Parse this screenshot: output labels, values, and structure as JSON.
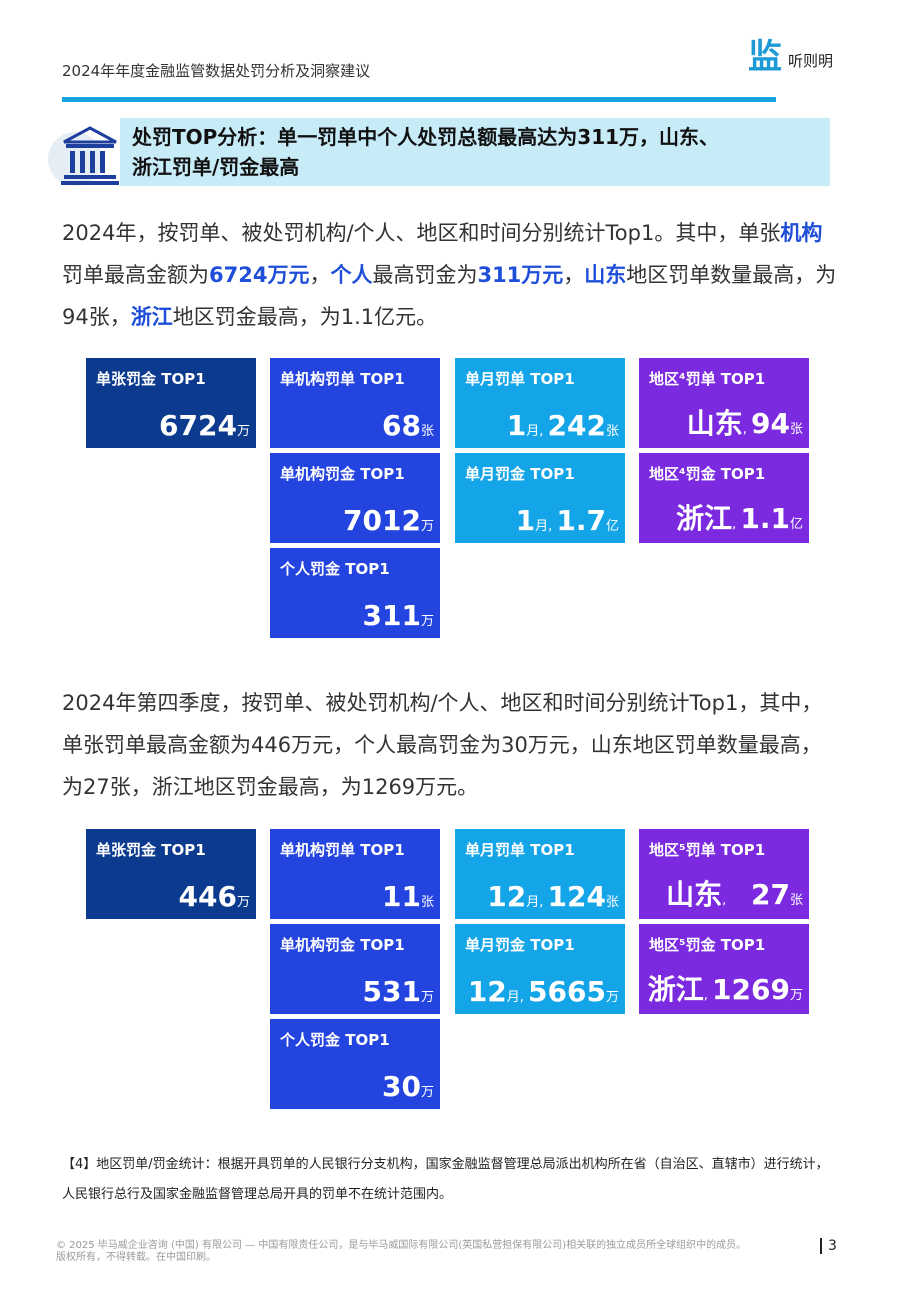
{
  "header": {
    "doc_title": "2024年年度金融监管数据处罚分析及洞察建议",
    "logo_mark": "监",
    "logo_text": "听则明"
  },
  "section": {
    "title_line1": "处罚TOP分析：单一罚单中个人处罚总额最高达为311万，山东、",
    "title_line2": "浙江罚单/罚金最高"
  },
  "para1": {
    "t1": "2024年，按罚单、被处罚机构/个人、地区和时间分别统计Top1。其中，单张",
    "h1": "机构",
    "t2": "罚单最高金额为",
    "h2": "6724万元",
    "t3": "，",
    "h3": "个人",
    "t4": "最高罚金为",
    "h4": "311万元",
    "t5": "，",
    "h5": "山东",
    "t6": "地区罚单数量最高，为94张，",
    "h6": "浙江",
    "t7": "地区罚金最高，为1.1亿元。"
  },
  "grid1": [
    {
      "label": "单张罚金 TOP1",
      "parts": [
        {
          "n": "6724"
        },
        {
          "u": "万"
        }
      ],
      "color": "navy"
    },
    {
      "label": "单机构罚单 TOP1",
      "parts": [
        {
          "n": "68"
        },
        {
          "u": "张"
        }
      ],
      "color": "blue"
    },
    {
      "label": "单月罚单 TOP1",
      "parts": [
        {
          "n": "1"
        },
        {
          "u": "月, "
        },
        {
          "n": "242"
        },
        {
          "u": "张"
        }
      ],
      "color": "cyan"
    },
    {
      "label": "地区⁴罚单 TOP1",
      "parts": [
        {
          "n": "山东"
        },
        {
          "u": ", "
        },
        {
          "n": "94"
        },
        {
          "u": "张"
        }
      ],
      "color": "purple"
    },
    {
      "label": "单机构罚金 TOP1",
      "parts": [
        {
          "n": "7012"
        },
        {
          "u": "万"
        }
      ],
      "color": "blue"
    },
    {
      "label": "单月罚金 TOP1",
      "parts": [
        {
          "n": "1"
        },
        {
          "u": "月, "
        },
        {
          "n": "1.7"
        },
        {
          "u": "亿"
        }
      ],
      "color": "cyan"
    },
    {
      "label": "地区⁴罚金 TOP1",
      "parts": [
        {
          "n": "浙江"
        },
        {
          "u": ", "
        },
        {
          "n": "1.1"
        },
        {
          "u": "亿"
        }
      ],
      "color": "purple"
    },
    {
      "label": "个人罚金 TOP1",
      "parts": [
        {
          "n": "311"
        },
        {
          "u": "万"
        }
      ],
      "color": "blue"
    }
  ],
  "para2": {
    "text": "2024年第四季度，按罚单、被处罚机构/个人、地区和时间分别统计Top1，其中，单张罚单最高金额为446万元，个人最高罚金为30万元，山东地区罚单数量最高，为27张，浙江地区罚金最高，为1269万元。"
  },
  "grid2": [
    {
      "label": "单张罚金 TOP1",
      "parts": [
        {
          "n": "446"
        },
        {
          "u": "万"
        }
      ],
      "color": "navy"
    },
    {
      "label": "单机构罚单 TOP1",
      "parts": [
        {
          "n": "11"
        },
        {
          "u": "张"
        }
      ],
      "color": "blue"
    },
    {
      "label": "单月罚单 TOP1",
      "parts": [
        {
          "n": "12"
        },
        {
          "u": "月, "
        },
        {
          "n": "124"
        },
        {
          "u": "张"
        }
      ],
      "color": "cyan"
    },
    {
      "label": "地区⁵罚单 TOP1",
      "parts": [
        {
          "n": "山东"
        },
        {
          "u": ",      "
        },
        {
          "n": "27"
        },
        {
          "u": "张"
        }
      ],
      "color": "purple"
    },
    {
      "label": "单机构罚金 TOP1",
      "parts": [
        {
          "n": "531"
        },
        {
          "u": "万"
        }
      ],
      "color": "blue"
    },
    {
      "label": "单月罚金 TOP1",
      "parts": [
        {
          "n": "12"
        },
        {
          "u": "月, "
        },
        {
          "n": "5665"
        },
        {
          "u": "万"
        }
      ],
      "color": "cyan"
    },
    {
      "label": "地区⁵罚金 TOP1",
      "parts": [
        {
          "n": "浙江"
        },
        {
          "u": ", "
        },
        {
          "n": "1269"
        },
        {
          "u": "万"
        }
      ],
      "color": "purple"
    },
    {
      "label": "个人罚金 TOP1",
      "parts": [
        {
          "n": "30"
        },
        {
          "u": "万"
        }
      ],
      "color": "blue"
    }
  ],
  "note": {
    "text": "【4】地区罚单/罚金统计：根据开具罚单的人民银行分支机构，国家金融监督管理总局派出机构所在省（自治区、直辖市）进行统计，人民银行总行及国家金融监督管理总局开具的罚单不在统计范围内。"
  },
  "footer": {
    "line1": "© 2025 毕马威企业咨询 (中国) 有限公司 — 中国有限责任公司，是与毕马威国际有限公司(英国私营担保有限公司)相关联的独立成员所全球组织中的成员。",
    "line2": "版权所有，不得转载。在中国印刷。",
    "page": "3"
  },
  "colors": {
    "navy": "#0b3a8f",
    "blue": "#2444e0",
    "cyan": "#14a5e8",
    "purple": "#7b2ae0",
    "accent_bar": "#15a4de",
    "highlight_text": "#1f4fd8"
  }
}
